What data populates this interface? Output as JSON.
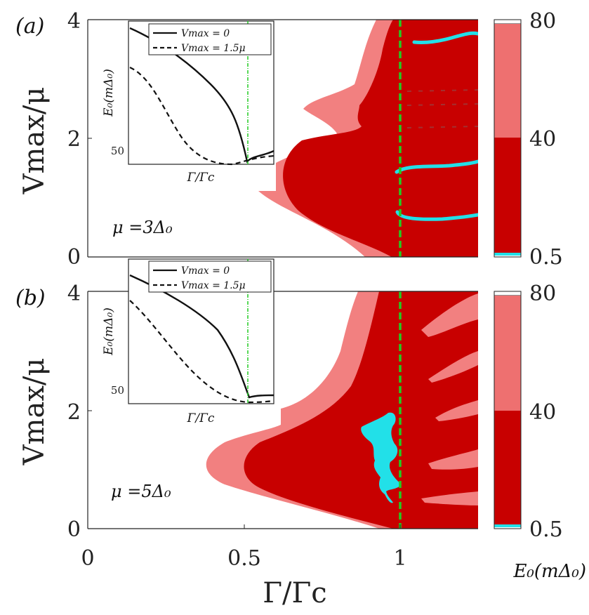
{
  "chart_data": [
    {
      "type": "heatmap",
      "panel_label": "(a)",
      "annotation": "μ =3Δ₀",
      "xlabel": "Γ/Γc",
      "ylabel": "Vmax/μ",
      "xlim": [
        0,
        1.25
      ],
      "ylim": [
        0,
        4
      ],
      "yticks": [
        "0",
        "2",
        "4"
      ],
      "critical_line_x": 1.0,
      "colorbar": {
        "ticks": [
          "80",
          "40",
          "0.5"
        ],
        "label": "E₀(mΔ₀)",
        "levels": [
          0.5,
          40,
          80
        ]
      },
      "inset": {
        "xlabel": "Γ/Γc",
        "ylabel": "E₀(mΔ₀)",
        "ytick": "50",
        "series": [
          {
            "name": "Vmax = 0",
            "style": "solid"
          },
          {
            "name": "Vmax = 1.5μ",
            "style": "dashed"
          }
        ]
      }
    },
    {
      "type": "heatmap",
      "panel_label": "(b)",
      "annotation": "μ =5Δ₀",
      "xlabel": "Γ/Γc",
      "ylabel": "Vmax/μ",
      "xlim": [
        0,
        1.25
      ],
      "ylim": [
        0,
        4
      ],
      "xticks": [
        "0",
        "0.5",
        "1"
      ],
      "yticks": [
        "0",
        "2",
        "4"
      ],
      "critical_line_x": 1.0,
      "colorbar": {
        "ticks": [
          "80",
          "40",
          "0.5"
        ],
        "label": "E₀(mΔ₀)",
        "levels": [
          0.5,
          40,
          80
        ]
      },
      "inset": {
        "xlabel": "Γ/Γc",
        "ylabel": "E₀(mΔ₀)",
        "ytick": "50",
        "series": [
          {
            "name": "Vmax = 0",
            "style": "solid"
          },
          {
            "name": "Vmax = 1.5μ",
            "style": "dashed"
          }
        ]
      }
    }
  ],
  "colors": {
    "dark_red": "#c80000",
    "light_red": "#f28080",
    "mid_red": "#e34b4b",
    "cyan": "#22e0e8",
    "green": "#22cc22"
  }
}
